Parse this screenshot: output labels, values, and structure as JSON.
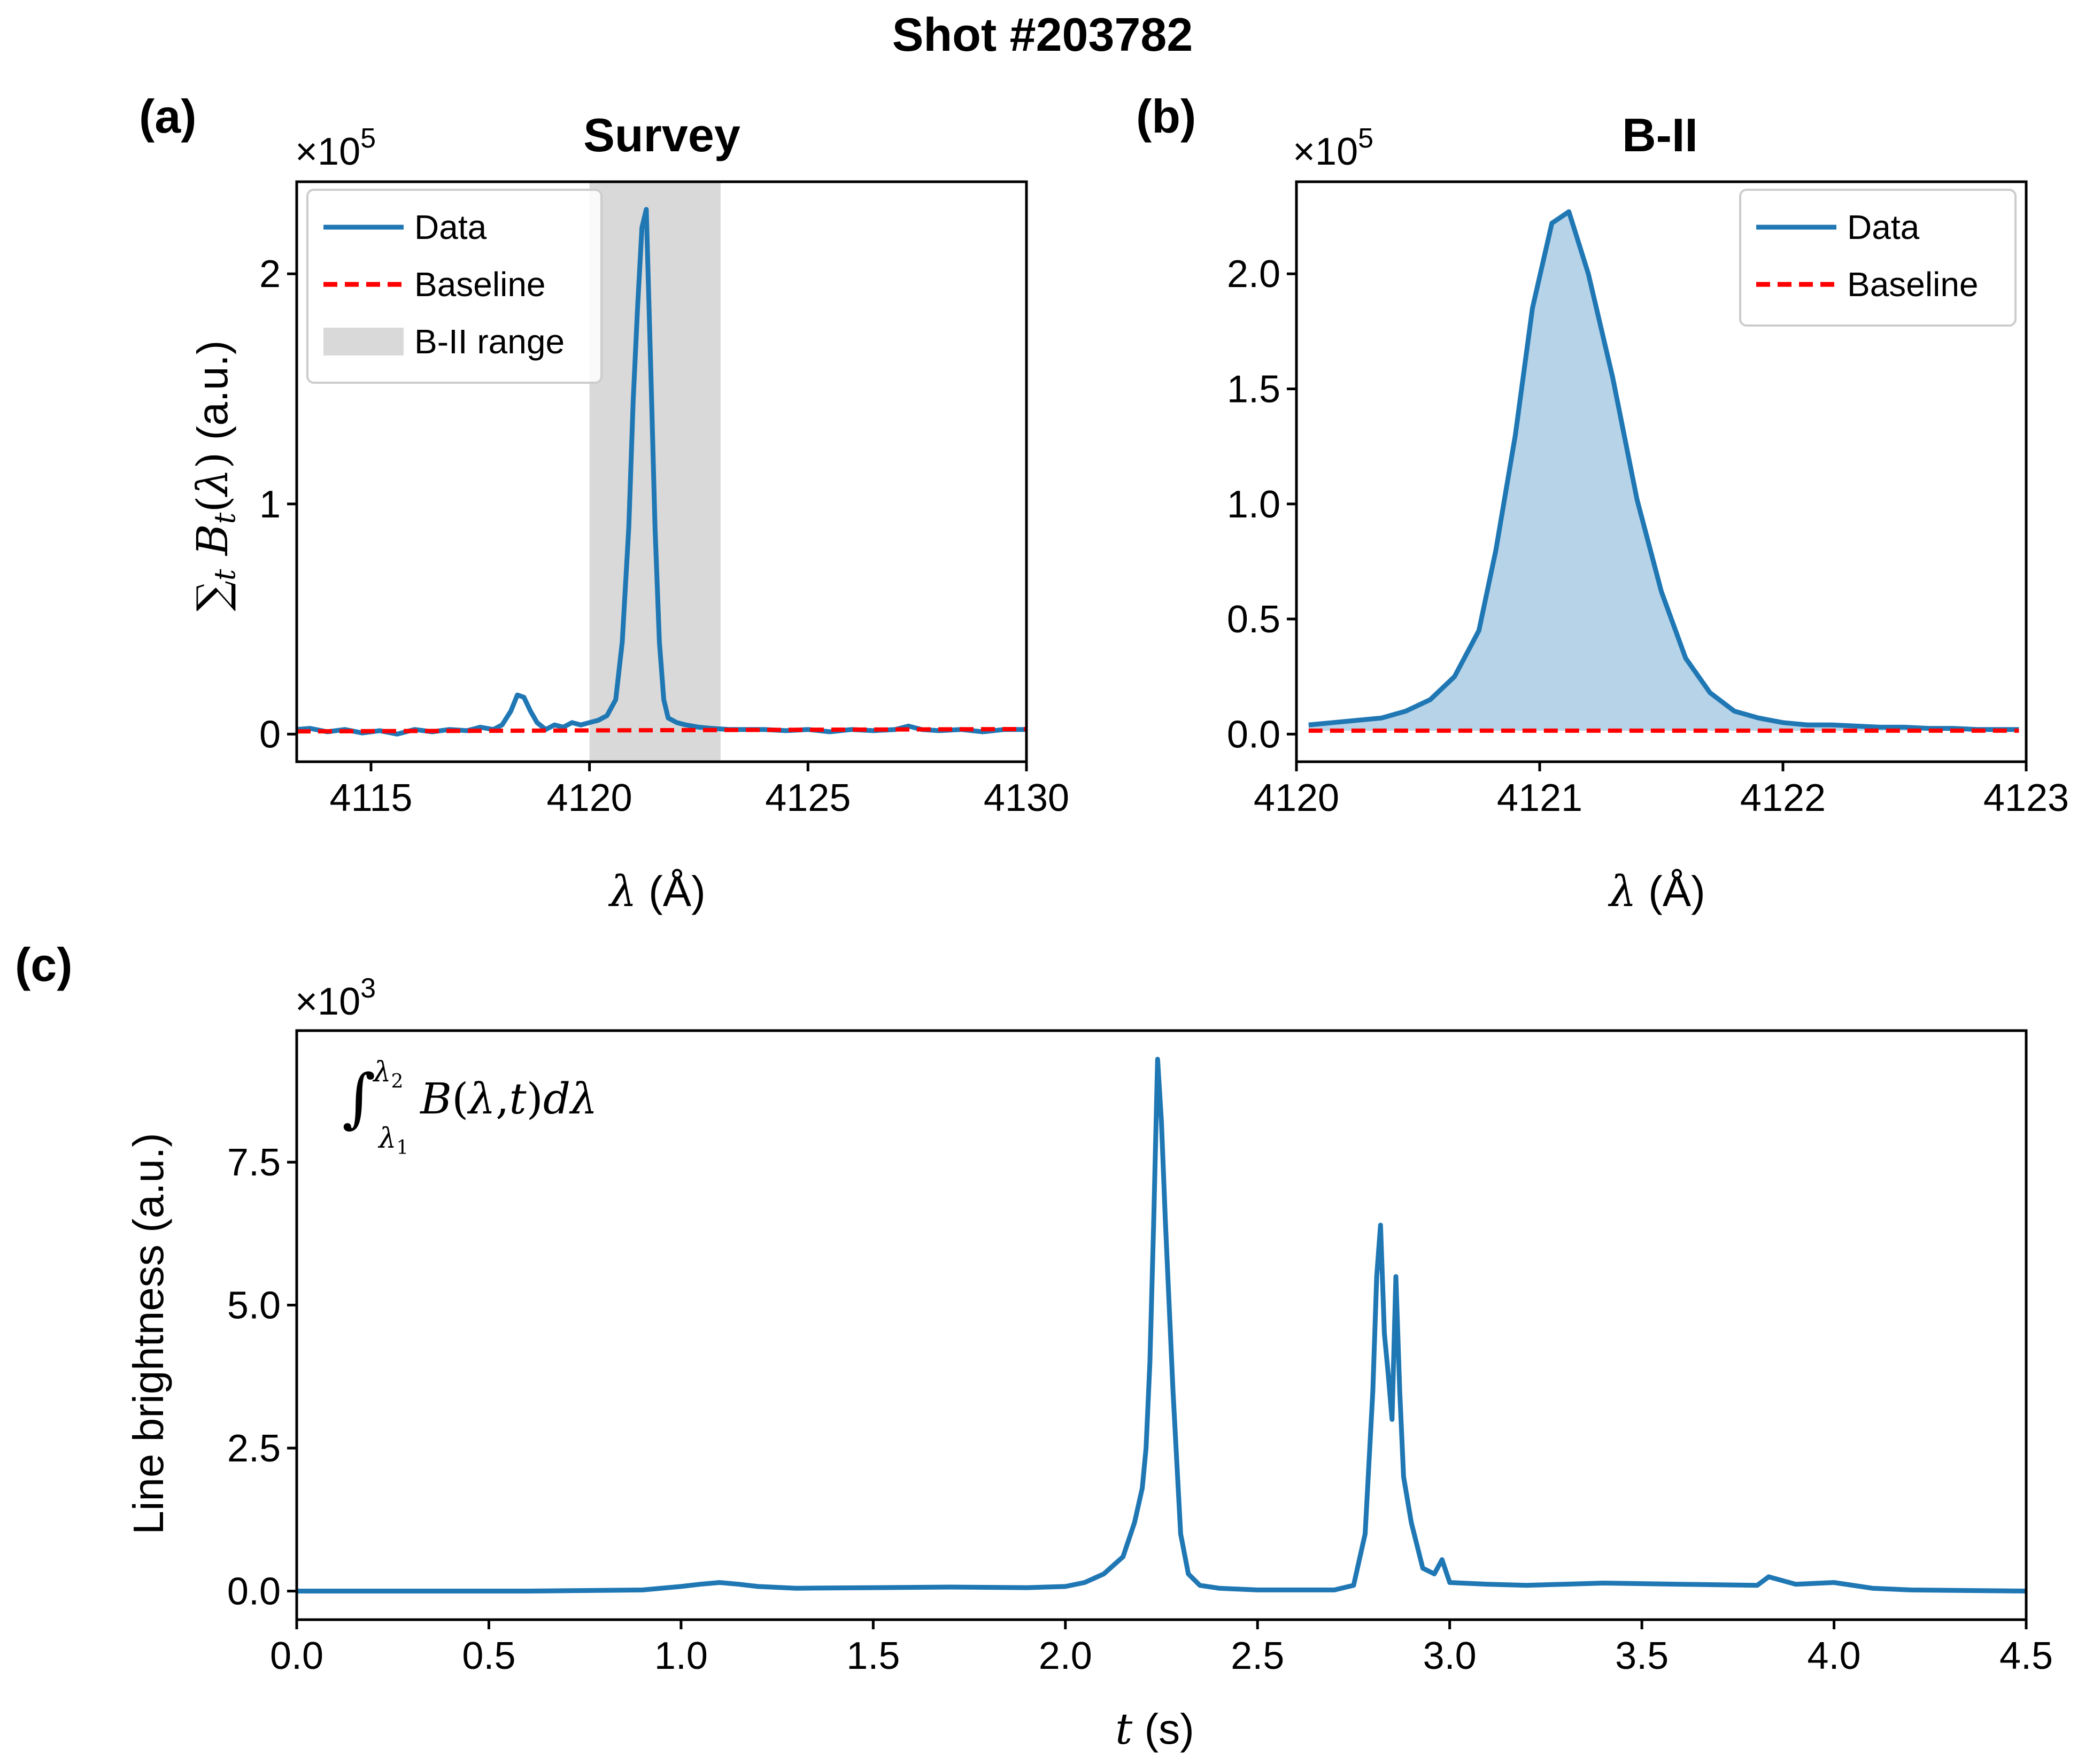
{
  "figure": {
    "suptitle": "Shot #203782"
  },
  "chart_data": [
    {
      "panel": "(a)",
      "type": "line",
      "title": "Survey",
      "xlabel": "λ (Å)",
      "ylabel": "∑t Bt(λ) (a.u.)",
      "offset_text": "×10^5",
      "xlim": [
        4113.3,
        4130
      ],
      "ylim": [
        -0.12,
        2.4
      ],
      "xticks": [
        4115,
        4120,
        4125,
        4130
      ],
      "xtick_labels": [
        "4115",
        "4120",
        "4125",
        "4130"
      ],
      "yticks": [
        0,
        1,
        2
      ],
      "ytick_labels": [
        "0",
        "1",
        "2"
      ],
      "shaded_range": [
        4120,
        4123
      ],
      "legend_position": "top-left",
      "legend": [
        "Data",
        "Baseline",
        "B-II range"
      ],
      "series": [
        {
          "name": "Data",
          "color": "#1f77b4",
          "x": [
            4113.3,
            4113.6,
            4114.0,
            4114.4,
            4114.8,
            4115.2,
            4115.6,
            4116.0,
            4116.4,
            4116.8,
            4117.2,
            4117.5,
            4117.8,
            4118.0,
            4118.2,
            4118.35,
            4118.5,
            4118.65,
            4118.8,
            4119.0,
            4119.2,
            4119.4,
            4119.6,
            4119.8,
            4120.0,
            4120.2,
            4120.4,
            4120.6,
            4120.75,
            4120.9,
            4121.0,
            4121.1,
            4121.2,
            4121.3,
            4121.4,
            4121.5,
            4121.6,
            4121.7,
            4121.8,
            4122.0,
            4122.2,
            4122.5,
            4122.8,
            4123.2,
            4123.6,
            4124.0,
            4124.5,
            4125.0,
            4125.5,
            4126.0,
            4126.5,
            4127.0,
            4127.3,
            4127.6,
            4128.0,
            4128.5,
            4129.0,
            4129.5,
            4130.0
          ],
          "y": [
            0.02,
            0.025,
            0.01,
            0.02,
            0.005,
            0.015,
            0.0,
            0.02,
            0.01,
            0.02,
            0.015,
            0.03,
            0.02,
            0.04,
            0.1,
            0.17,
            0.16,
            0.1,
            0.05,
            0.02,
            0.04,
            0.03,
            0.05,
            0.04,
            0.05,
            0.06,
            0.08,
            0.15,
            0.4,
            0.9,
            1.45,
            1.85,
            2.2,
            2.28,
            1.6,
            0.9,
            0.4,
            0.15,
            0.07,
            0.05,
            0.04,
            0.03,
            0.025,
            0.02,
            0.02,
            0.02,
            0.015,
            0.02,
            0.01,
            0.02,
            0.015,
            0.02,
            0.035,
            0.02,
            0.015,
            0.02,
            0.01,
            0.02,
            0.02
          ]
        },
        {
          "name": "Baseline",
          "color": "#ff0000",
          "x": [
            4113.3,
            4130.0
          ],
          "y": [
            0.012,
            0.022
          ]
        }
      ]
    },
    {
      "panel": "(b)",
      "type": "area",
      "title": "B-II",
      "xlabel": "λ (Å)",
      "ylabel": "",
      "offset_text": "×10^5",
      "xlim": [
        4120,
        4123
      ],
      "ylim": [
        -0.12,
        2.4
      ],
      "xticks": [
        4120,
        4121,
        4122,
        4123
      ],
      "xtick_labels": [
        "4120",
        "4121",
        "4122",
        "4123"
      ],
      "yticks": [
        0,
        0.5,
        1.0,
        1.5,
        2.0
      ],
      "ytick_labels": [
        "0.0",
        "0.5",
        "1.0",
        "1.5",
        "2.0"
      ],
      "legend_position": "top-right",
      "legend": [
        "Data",
        "Baseline"
      ],
      "series": [
        {
          "name": "Data",
          "color": "#1f77b4",
          "fill": "#b7d3e8",
          "x": [
            4120.05,
            4120.15,
            4120.25,
            4120.35,
            4120.45,
            4120.55,
            4120.65,
            4120.75,
            4120.82,
            4120.9,
            4120.97,
            4121.05,
            4121.12,
            4121.2,
            4121.3,
            4121.4,
            4121.5,
            4121.6,
            4121.7,
            4121.8,
            4121.9,
            4122.0,
            4122.1,
            4122.2,
            4122.3,
            4122.4,
            4122.5,
            4122.6,
            4122.7,
            4122.8,
            4122.9,
            4122.97
          ],
          "y": [
            0.04,
            0.05,
            0.06,
            0.07,
            0.1,
            0.15,
            0.25,
            0.45,
            0.8,
            1.3,
            1.85,
            2.22,
            2.27,
            2.0,
            1.55,
            1.02,
            0.62,
            0.33,
            0.18,
            0.1,
            0.07,
            0.05,
            0.04,
            0.04,
            0.035,
            0.03,
            0.03,
            0.025,
            0.025,
            0.02,
            0.02,
            0.02
          ]
        },
        {
          "name": "Baseline",
          "color": "#ff0000",
          "x": [
            4120.05,
            4122.97
          ],
          "y": [
            0.015,
            0.015
          ]
        }
      ]
    },
    {
      "panel": "(c)",
      "type": "line",
      "title": "",
      "xlabel": "t (s)",
      "ylabel": "Line brightness (a.u.)",
      "annotation": "∫λ1λ2 B(λ,t)dλ",
      "offset_text": "×10^3",
      "xlim": [
        0,
        4.5
      ],
      "ylim": [
        -0.5,
        9.8
      ],
      "xticks": [
        0,
        0.5,
        1.0,
        1.5,
        2.0,
        2.5,
        3.0,
        3.5,
        4.0,
        4.5
      ],
      "xtick_labels": [
        "0.0",
        "0.5",
        "1.0",
        "1.5",
        "2.0",
        "2.5",
        "3.0",
        "3.5",
        "4.0",
        "4.5"
      ],
      "yticks": [
        0,
        2.5,
        5.0,
        7.5
      ],
      "ytick_labels": [
        "0.0",
        "2.5",
        "5.0",
        "7.5"
      ],
      "series": [
        {
          "name": "",
          "color": "#1f77b4",
          "x": [
            0.0,
            0.3,
            0.6,
            0.9,
            1.0,
            1.05,
            1.1,
            1.15,
            1.2,
            1.3,
            1.5,
            1.7,
            1.9,
            2.0,
            2.05,
            2.1,
            2.15,
            2.18,
            2.2,
            2.21,
            2.22,
            2.23,
            2.24,
            2.25,
            2.26,
            2.28,
            2.3,
            2.32,
            2.35,
            2.4,
            2.5,
            2.6,
            2.7,
            2.75,
            2.78,
            2.8,
            2.81,
            2.82,
            2.83,
            2.84,
            2.85,
            2.86,
            2.87,
            2.88,
            2.9,
            2.93,
            2.96,
            2.98,
            3.0,
            3.1,
            3.2,
            3.4,
            3.6,
            3.8,
            3.83,
            3.9,
            4.0,
            4.1,
            4.2,
            4.5
          ],
          "y": [
            0.0,
            0.0,
            0.0,
            0.02,
            0.08,
            0.12,
            0.15,
            0.12,
            0.08,
            0.05,
            0.06,
            0.07,
            0.06,
            0.08,
            0.15,
            0.3,
            0.6,
            1.2,
            1.8,
            2.5,
            4.0,
            6.5,
            9.3,
            8.2,
            6.5,
            3.5,
            1.0,
            0.3,
            0.1,
            0.05,
            0.02,
            0.02,
            0.02,
            0.1,
            1.0,
            3.5,
            5.5,
            6.4,
            4.5,
            3.8,
            3.0,
            5.5,
            3.5,
            2.0,
            1.2,
            0.4,
            0.3,
            0.55,
            0.15,
            0.12,
            0.1,
            0.14,
            0.12,
            0.1,
            0.25,
            0.12,
            0.15,
            0.05,
            0.02,
            0.0
          ]
        }
      ]
    }
  ]
}
